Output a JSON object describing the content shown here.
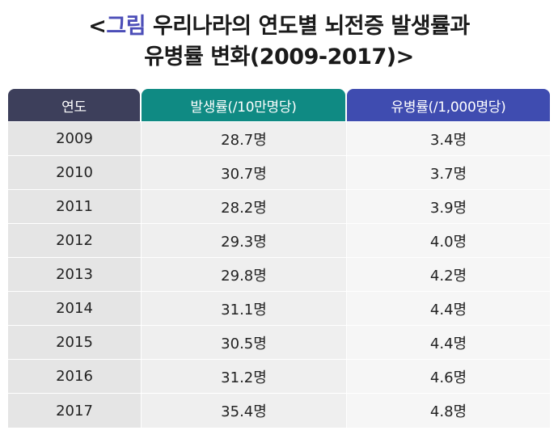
{
  "title": {
    "open": "<",
    "accent": "그림",
    "line1_rest": " 우리나라의 연도별 뇌전증 발생률과",
    "line2": "유병률 변화(2009-2017)>"
  },
  "table": {
    "headers": {
      "year": "연도",
      "incidence": "발생률(/10만명당)",
      "prevalence": "유병률(/1,000명당)"
    },
    "rows": [
      {
        "year": "2009",
        "incidence": "28.7명",
        "prevalence": "3.4명"
      },
      {
        "year": "2010",
        "incidence": "30.7명",
        "prevalence": "3.7명"
      },
      {
        "year": "2011",
        "incidence": "28.2명",
        "prevalence": "3.9명"
      },
      {
        "year": "2012",
        "incidence": "29.3명",
        "prevalence": "4.0명"
      },
      {
        "year": "2013",
        "incidence": "29.8명",
        "prevalence": "4.2명"
      },
      {
        "year": "2014",
        "incidence": "31.1명",
        "prevalence": "4.4명"
      },
      {
        "year": "2015",
        "incidence": "30.5명",
        "prevalence": "4.4명"
      },
      {
        "year": "2016",
        "incidence": "31.2명",
        "prevalence": "4.6명"
      },
      {
        "year": "2017",
        "incidence": "35.4명",
        "prevalence": "4.8명"
      }
    ]
  },
  "colors": {
    "accent": "#4c4eb8",
    "header_year": "#3d3f5b",
    "header_incidence": "#0f8a83",
    "header_prevalence": "#3f4cb0"
  }
}
